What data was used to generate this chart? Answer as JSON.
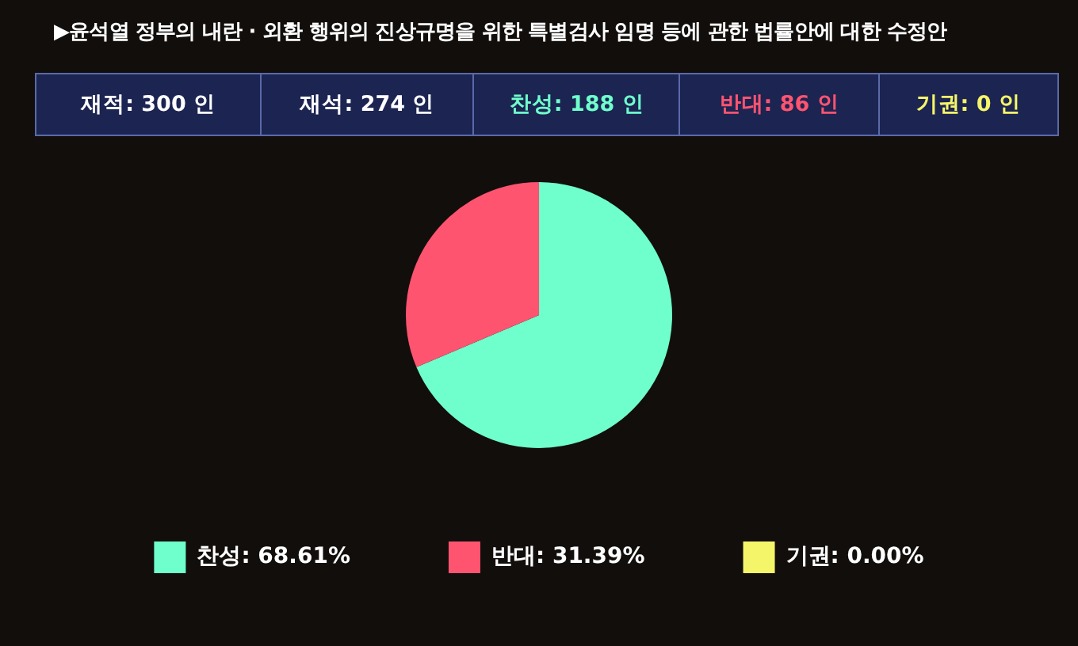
{
  "chart_data": {
    "type": "pie",
    "title": "▶윤석열 정부의 내란 · 외환 행위의 진상규명을 위한 특별검사 임명 등에 관한 법률안에 대한 수정안",
    "annotations": [
      "재적: 300 인",
      "재석: 274 인",
      "찬성: 188 인",
      "반대: 86 인",
      "기권: 0 인"
    ],
    "categories": [
      "찬성",
      "반대",
      "기권"
    ],
    "values": [
      68.61,
      31.39,
      0
    ],
    "value_labels": [
      "68.61%",
      "31.39%",
      "0.00%"
    ],
    "colors": [
      "#6fffcc",
      "#ff5470",
      "#f5f56a"
    ],
    "legend": "bottom"
  }
}
